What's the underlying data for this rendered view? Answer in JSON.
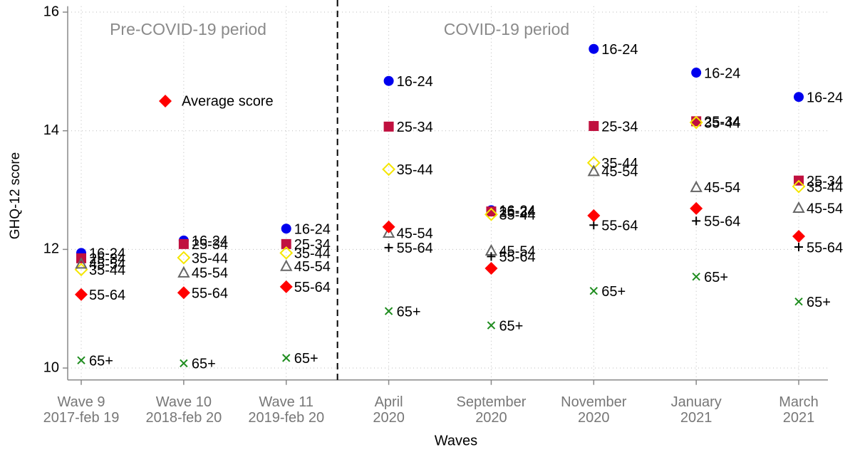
{
  "chart_data": {
    "type": "scatter",
    "title": "Pre-COVID-19 period",
    "subtitle": "COVID-19 period",
    "x_label": "Waves",
    "y_label": "GHQ-12 score",
    "categories": [
      [
        "Wave 9",
        "2017-feb 19"
      ],
      [
        "Wave 10",
        "2018-feb 20"
      ],
      [
        "Wave 11",
        "2019-feb 20"
      ],
      [
        "April",
        "2020"
      ],
      [
        "September",
        "2020"
      ],
      [
        "November",
        "2020"
      ],
      [
        "January",
        "2021"
      ],
      [
        "March",
        "2021"
      ]
    ],
    "ylim": [
      9.8,
      16.1
    ],
    "yticks": [
      10,
      12,
      14,
      16
    ],
    "grid": true,
    "series": [
      {
        "name": "16-24",
        "color": "#0000ee",
        "marker": "circle",
        "label_points": true,
        "values": [
          11.94,
          12.15,
          12.35,
          14.84,
          12.66,
          15.38,
          14.98,
          14.57
        ]
      },
      {
        "name": "25-34",
        "color": "#c0103f",
        "marker": "square",
        "label_points": true,
        "values": [
          11.85,
          12.09,
          12.09,
          14.07,
          12.64,
          14.08,
          14.16,
          13.16
        ]
      },
      {
        "name": "35-44",
        "color": "#f5e600",
        "marker": "open-diamond",
        "label_points": true,
        "values": [
          11.66,
          11.86,
          11.94,
          13.35,
          12.59,
          13.46,
          14.14,
          13.06
        ]
      },
      {
        "name": "45-54",
        "color": "#666666",
        "marker": "open-triangle",
        "label_points": true,
        "values": [
          11.76,
          11.61,
          11.72,
          12.28,
          11.98,
          13.32,
          13.05,
          12.7
        ]
      },
      {
        "name": "55-64",
        "color": "#000000",
        "marker": "plus",
        "label_points": true,
        "values": [
          11.24,
          11.27,
          11.37,
          12.03,
          11.88,
          12.41,
          12.48,
          12.04
        ]
      },
      {
        "name": "65+",
        "color": "#1e8c1e",
        "marker": "cross",
        "label_points": true,
        "values": [
          10.13,
          10.08,
          10.17,
          10.96,
          10.72,
          11.3,
          11.54,
          11.12
        ]
      },
      {
        "name": "Average score",
        "color": "#ff0000",
        "marker": "diamond",
        "legend": true,
        "values": [
          11.24,
          11.27,
          11.37,
          12.38,
          11.68,
          12.57,
          12.69,
          12.22
        ]
      }
    ]
  }
}
